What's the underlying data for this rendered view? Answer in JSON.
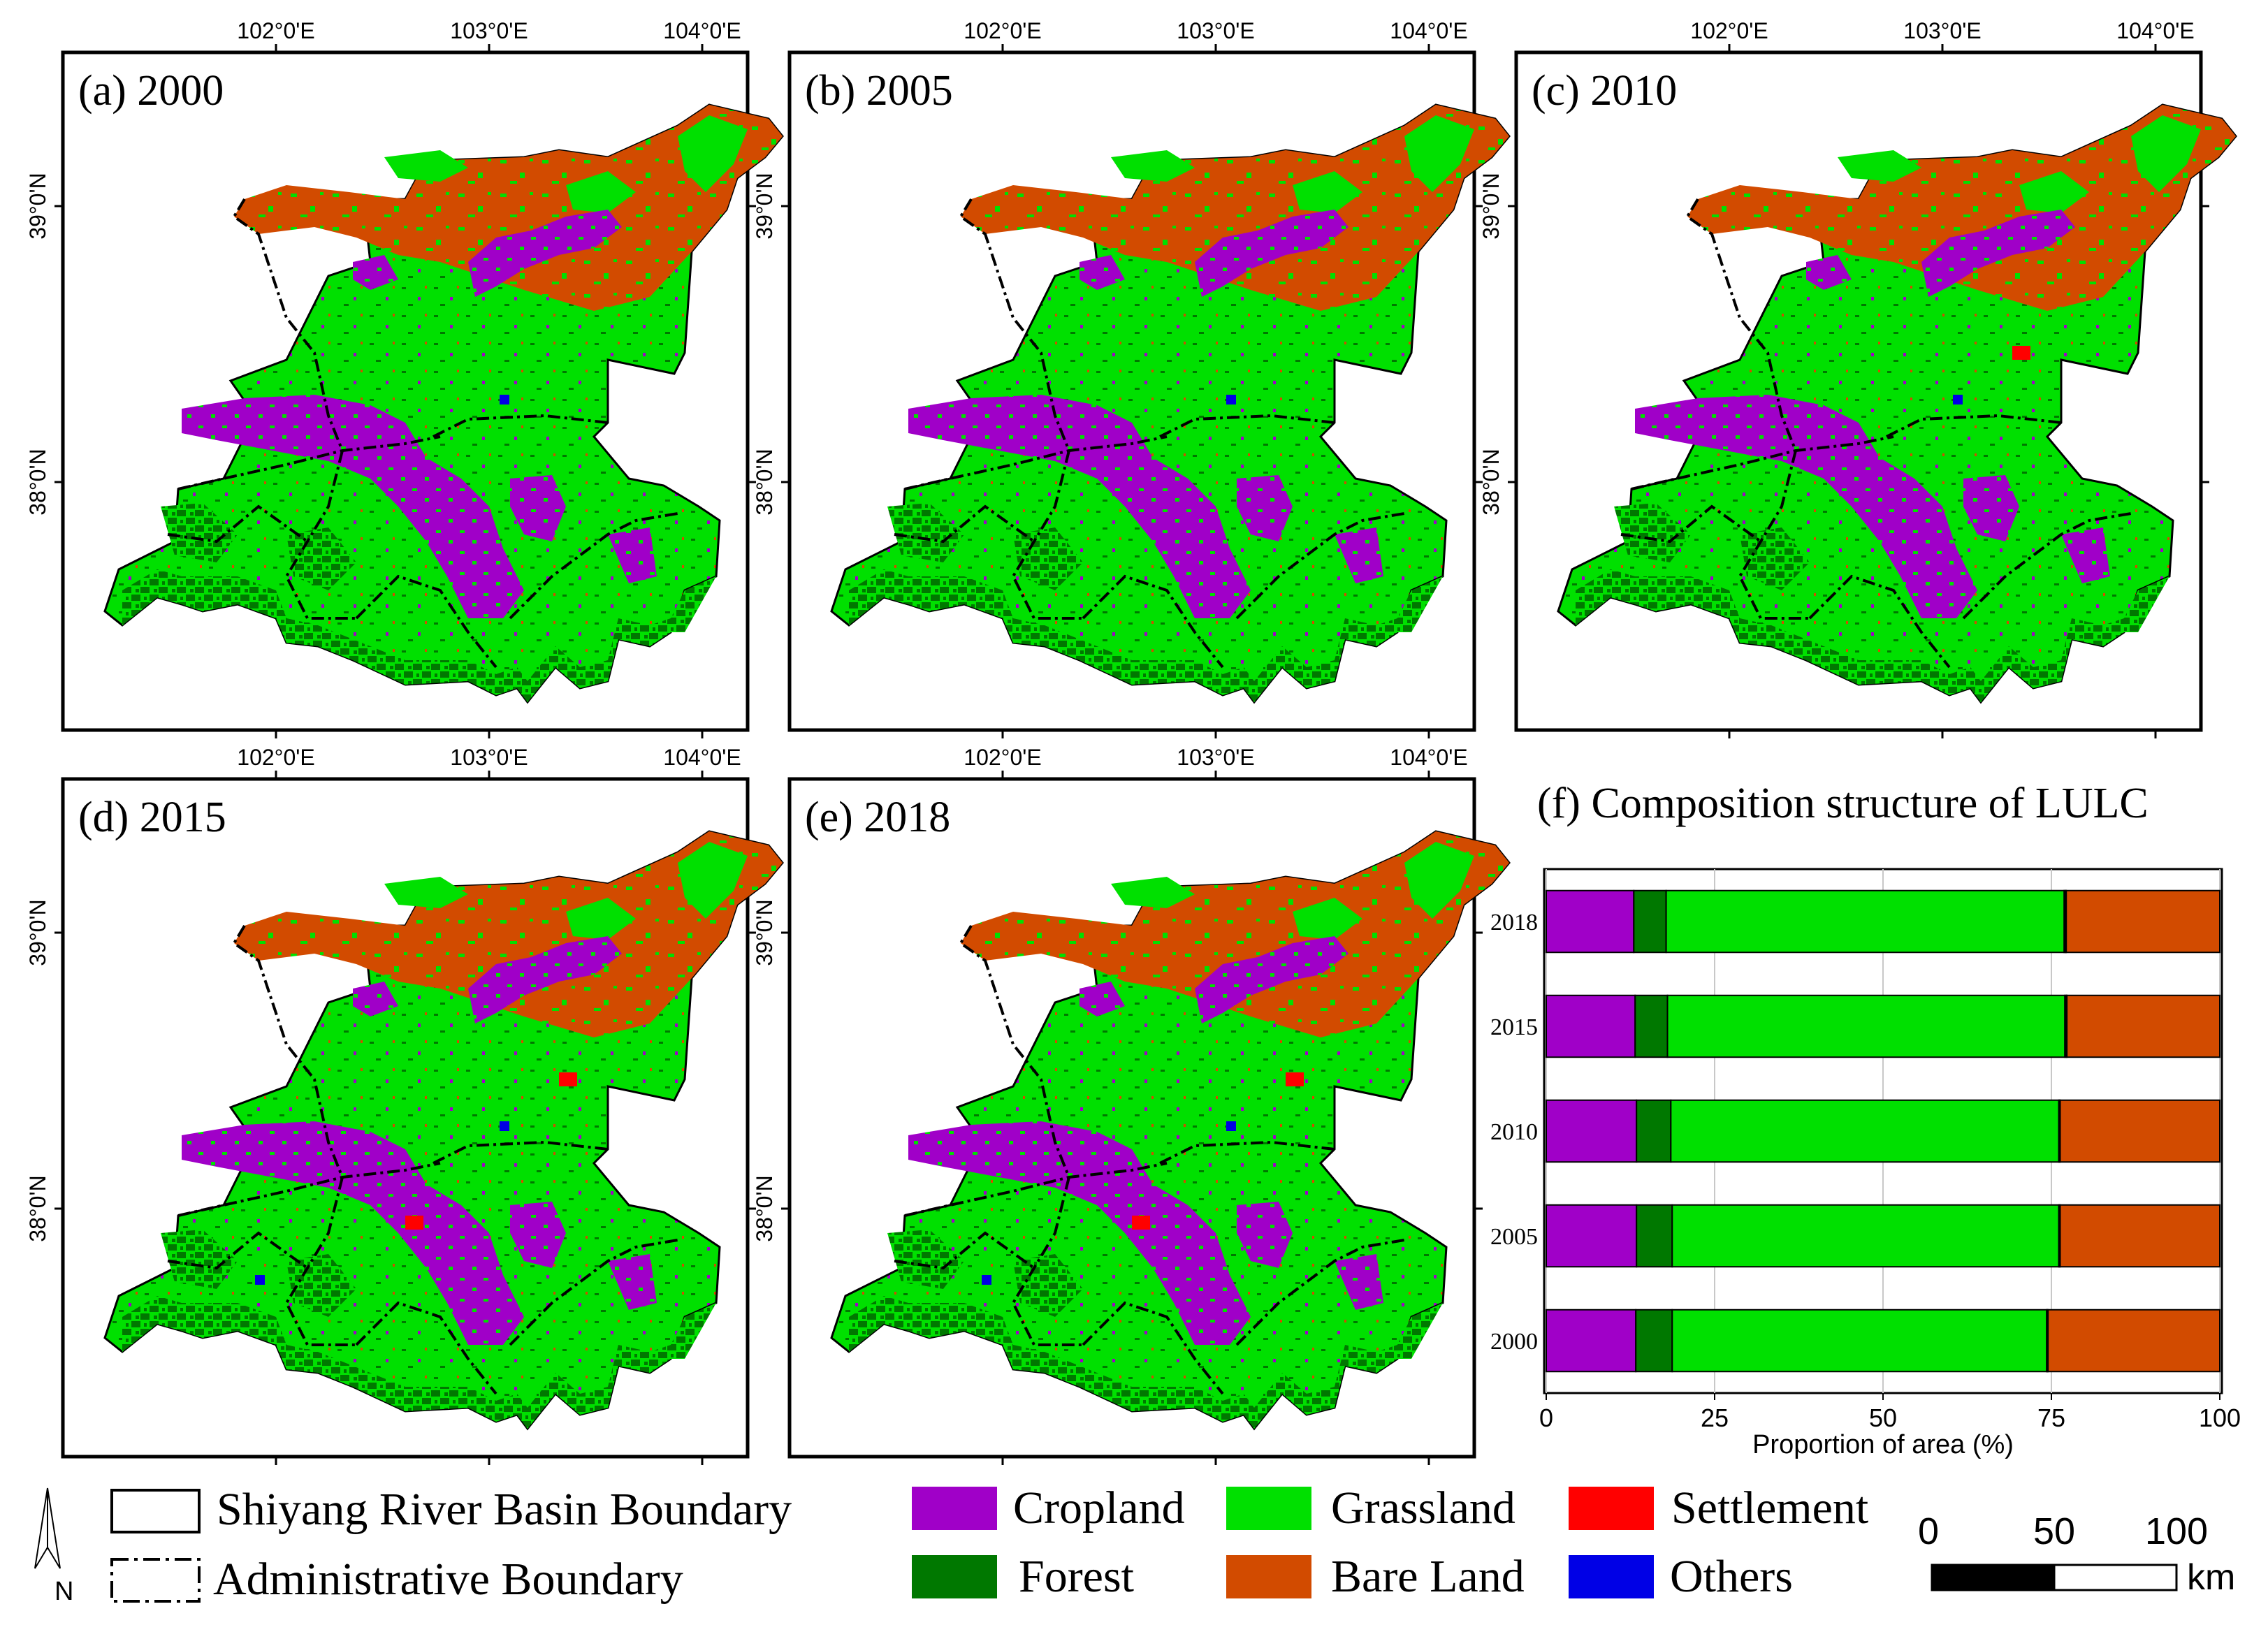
{
  "colors": {
    "cropland": "#a000c8",
    "grassland": "#00e000",
    "settlement": "#ff0000",
    "forest": "#007800",
    "bare_land": "#d24b00",
    "others": "#0000e6",
    "frame": "#000000"
  },
  "axes": {
    "lon_labels": [
      "102°0'E",
      "103°0'E",
      "104°0'E"
    ],
    "lat_labels": [
      "39°0'N",
      "38°0'N"
    ]
  },
  "panels": [
    {
      "label": "(a) 2000",
      "settlement_patches": 0,
      "others_patches": 1
    },
    {
      "label": "(b) 2005",
      "settlement_patches": 0,
      "others_patches": 1
    },
    {
      "label": "(c) 2010",
      "settlement_patches": 1,
      "others_patches": 1
    },
    {
      "label": "(d) 2015",
      "settlement_patches": 2,
      "others_patches": 2
    },
    {
      "label": "(e) 2018",
      "settlement_patches": 2,
      "others_patches": 2
    }
  ],
  "chart_data": {
    "type": "bar",
    "orientation": "horizontal-stacked",
    "title": "(f) Composition structure of LULC",
    "xlabel": "Proportion of area (%)",
    "ylabel": "",
    "xlim": [
      0,
      100
    ],
    "xticks": [
      "0",
      "25",
      "50",
      "75",
      "100"
    ],
    "categories": [
      "2018",
      "2015",
      "2010",
      "2005",
      "2000"
    ],
    "series": [
      {
        "name": "Cropland",
        "color": "#a000c8",
        "values": [
          13.0,
          13.2,
          13.4,
          13.4,
          13.3
        ]
      },
      {
        "name": "Forest",
        "color": "#007800",
        "values": [
          4.8,
          4.8,
          5.1,
          5.3,
          5.4
        ]
      },
      {
        "name": "Grassland",
        "color": "#00e000",
        "values": [
          59.1,
          59.0,
          57.6,
          57.4,
          55.6
        ]
      },
      {
        "name": "Settlement",
        "color": "#ff0000",
        "values": [
          0.2,
          0.2,
          0.1,
          0.1,
          0.1
        ]
      },
      {
        "name": "Others",
        "color": "#0000e6",
        "values": [
          0.1,
          0.1,
          0.1,
          0.1,
          0.1
        ]
      },
      {
        "name": "Bare Land",
        "color": "#d24b00",
        "values": [
          22.8,
          22.7,
          23.7,
          23.7,
          25.5
        ]
      }
    ]
  },
  "legend": {
    "basin_boundary": "Shiyang River Basin Boundary",
    "admin_boundary": "Administrative Boundary",
    "cropland": "Cropland",
    "forest": "Forest",
    "grassland": "Grassland",
    "bare_land": "Bare Land",
    "settlement": "Settlement",
    "others": "Others"
  },
  "north_arrow": "N",
  "scale_bar": {
    "ticks": [
      "0",
      "50",
      "100"
    ],
    "unit": "km",
    "segments": [
      0,
      50,
      100
    ]
  }
}
